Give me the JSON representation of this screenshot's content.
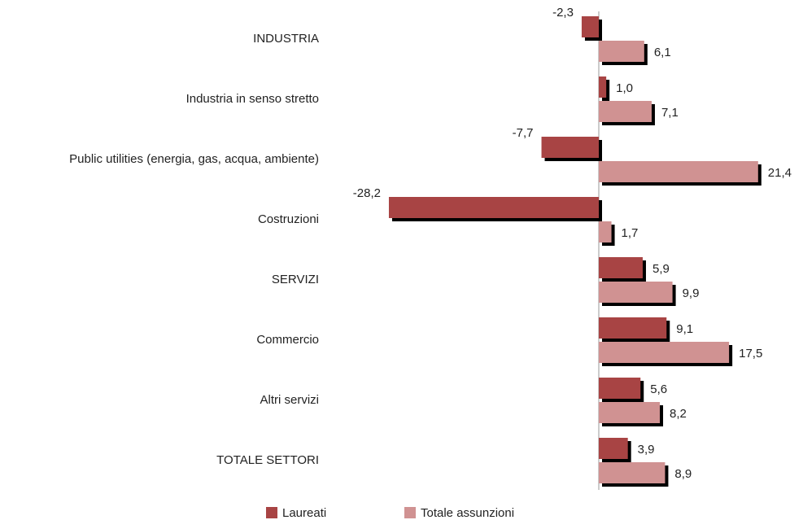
{
  "chart_data": {
    "type": "hbar",
    "categories": [
      "INDUSTRIA",
      "Industria in senso stretto",
      "Public utilities (energia, gas, acqua, ambiente)",
      "Costruzioni",
      "SERVIZI",
      "Commercio",
      "Altri servizi",
      "TOTALE SETTORI"
    ],
    "series": [
      {
        "name": "Laureati",
        "color": "#a84444",
        "values": [
          -2.3,
          1.0,
          -7.7,
          -28.2,
          5.9,
          9.1,
          5.6,
          3.9
        ],
        "value_labels": [
          "-2,3",
          "1,0",
          "-7,7",
          "-28,2",
          "5,9",
          "9,1",
          "5,6",
          "3,9"
        ]
      },
      {
        "name": "Totale assunzioni",
        "color": "#d09292",
        "values": [
          6.1,
          7.1,
          21.4,
          1.7,
          9.9,
          17.5,
          8.2,
          8.9
        ],
        "value_labels": [
          "6,1",
          "7,1",
          "21,4",
          "1,7",
          "9,9",
          "17,5",
          "8,2",
          "8,9"
        ]
      }
    ],
    "legend": "bottom"
  }
}
